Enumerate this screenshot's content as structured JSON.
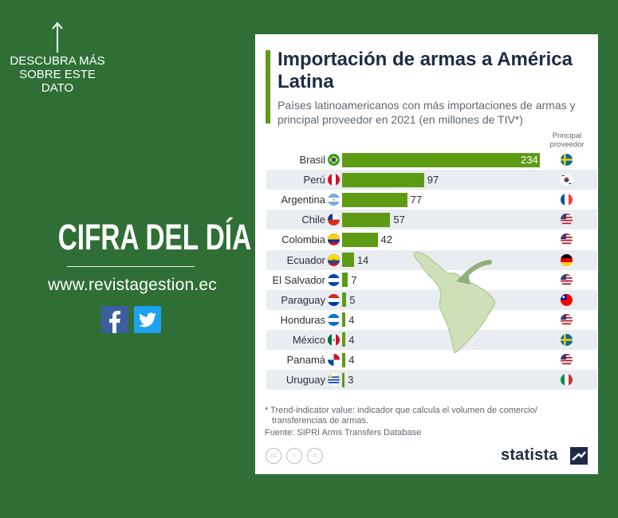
{
  "left_panel": {
    "discover_text": "DESCUBRA MÁS SOBRE ESTE DATO",
    "headline": "CIFRA DEL DÍA",
    "website": "www.revistagestion.ec",
    "social": [
      {
        "name": "facebook",
        "label": "f",
        "color": "#3b5ea0"
      },
      {
        "name": "twitter",
        "label": "twitter-bird",
        "color": "#1da1f2"
      }
    ],
    "background_color": "#2f6f35"
  },
  "card": {
    "supplier_header": "Principal proveedor",
    "footnote_lines": [
      "* Trend-indicator value: indicador que calcula el volumen de comercio/",
      "transferencias de armas.",
      "Fuente: SIPRI Arms Transfers Database"
    ],
    "brand": "statista",
    "license_icons": [
      "cc-icon",
      "attribution-icon",
      "no-derivatives-icon"
    ]
  },
  "chart_data": {
    "type": "bar",
    "orientation": "horizontal",
    "title": "Importación de armas a América Latina",
    "subtitle": "Países latinoamericanos con más importaciones de armas y principal proveedor en 2021 (en millones de TIV*)",
    "bar_color": "#5e9b14",
    "xlim": [
      0,
      234
    ],
    "categories": [
      "Brasil",
      "Perú",
      "Argentina",
      "Chile",
      "Colombia",
      "Ecuador",
      "El Salvador",
      "Paraguay",
      "Honduras",
      "México",
      "Panamá",
      "Uruguay"
    ],
    "values": [
      234,
      97,
      77,
      57,
      42,
      14,
      7,
      5,
      4,
      4,
      4,
      3
    ],
    "country_flags": [
      "brazil",
      "peru",
      "argentina",
      "chile",
      "colombia",
      "ecuador",
      "el-salvador",
      "paraguay",
      "honduras",
      "mexico",
      "panama",
      "uruguay"
    ],
    "supplier_flags": [
      "sweden",
      "south-korea",
      "france",
      "usa",
      "usa",
      "germany",
      "usa",
      "taiwan",
      "usa",
      "sweden",
      "usa",
      "italy"
    ]
  }
}
